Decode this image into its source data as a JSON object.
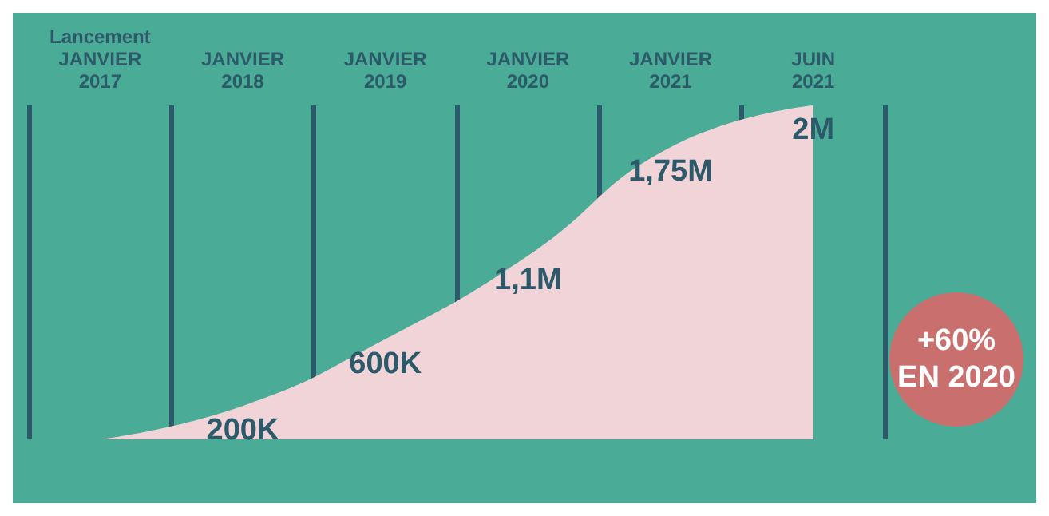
{
  "chart_data": {
    "type": "area",
    "categories": [
      "Lancement\nJANVIER\n2017",
      "JANVIER\n2018",
      "JANVIER\n2019",
      "JANVIER\n2020",
      "JANVIER\n2021",
      "JUIN\n2021"
    ],
    "values": [
      0,
      200000,
      600000,
      1100000,
      1750000,
      2000000
    ],
    "value_labels": [
      null,
      "200K",
      "600K",
      "1,1M",
      "1,75M",
      "2M"
    ],
    "color": "#f0d4d8",
    "annotations": [
      "+60%\nEN 2020"
    ],
    "tick_labels": "x",
    "grid": "x"
  }
}
